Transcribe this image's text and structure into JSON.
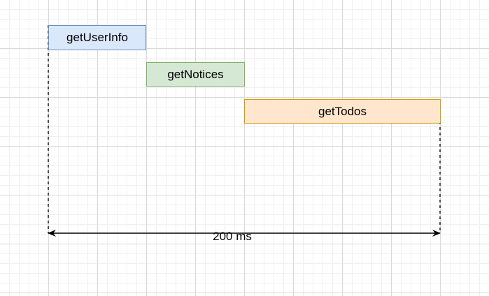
{
  "diagram": {
    "boxes": [
      {
        "label": "getUserInfo",
        "fill": "#dae8fc",
        "stroke": "#6c8ebf"
      },
      {
        "label": "getNotices",
        "fill": "#d5e8d4",
        "stroke": "#82b366"
      },
      {
        "label": "getTodos",
        "fill": "#ffe6cc",
        "stroke": "#d79b00"
      }
    ],
    "duration_label": "200 ms"
  }
}
